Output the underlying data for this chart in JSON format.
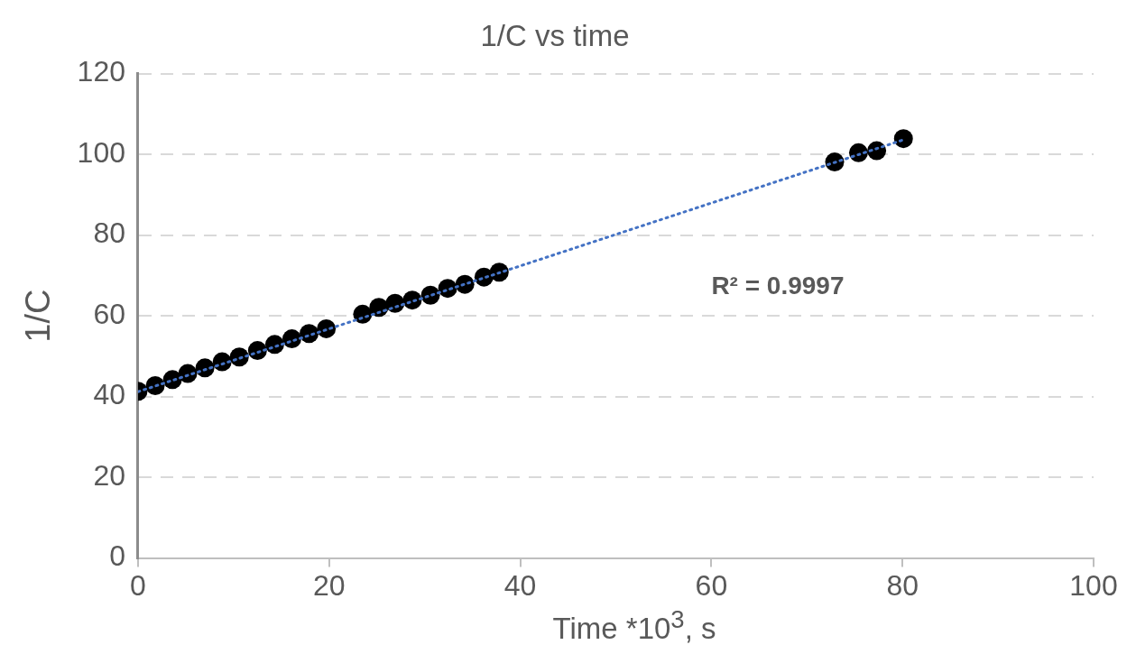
{
  "chart_data": {
    "type": "scatter",
    "title": "1/C vs time",
    "xlabel": "Time *10$^{3}$, s",
    "ylabel": "1/C",
    "xlim": [
      0,
      100
    ],
    "xticks": [
      0,
      20,
      40,
      60,
      80,
      100
    ],
    "ylim": [
      0,
      120
    ],
    "yticks": [
      0,
      20,
      40,
      60,
      80,
      100,
      120
    ],
    "grid": "y",
    "legend": false,
    "marker": "circle",
    "series": [
      {
        "type": "scatter",
        "color": "#000000",
        "x": [
          0,
          1.8,
          3.6,
          5.2,
          7.0,
          8.8,
          10.6,
          12.5,
          14.3,
          16.1,
          17.9,
          19.7,
          23.5,
          25.2,
          26.9,
          28.7,
          30.6,
          32.4,
          34.2,
          36.2,
          37.8,
          72.9,
          75.4,
          77.3,
          80.1
        ],
        "values": [
          41.3,
          42.7,
          44.2,
          45.7,
          47.1,
          48.6,
          49.8,
          51.4,
          52.9,
          54.3,
          55.6,
          56.8,
          60.4,
          62.1,
          63.1,
          63.9,
          65.1,
          66.8,
          67.8,
          69.6,
          70.8,
          98.1,
          100.4,
          100.9,
          103.9
        ]
      },
      {
        "type": "line",
        "color": "#4472c4",
        "line_style": "dotted",
        "marker": "none",
        "x": [
          0,
          80.1
        ],
        "values": [
          41.2,
          103.6
        ]
      }
    ],
    "annotations": [
      "R² = 0.9997"
    ]
  }
}
